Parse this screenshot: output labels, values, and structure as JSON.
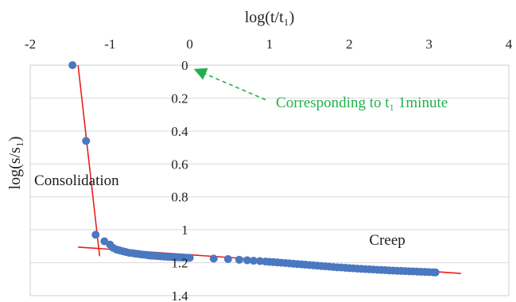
{
  "chart_data": {
    "type": "scatter",
    "title": "",
    "xlabel": "log(t/t₁)",
    "ylabel": "log(s/s₁)",
    "xlim": [
      -2,
      4
    ],
    "ylim": [
      0,
      1.4
    ],
    "y_inverted": true,
    "x_axis_position": "top",
    "xticks": [
      "-2",
      "-1",
      "0",
      "1",
      "2",
      "3",
      "4"
    ],
    "yticks": [
      "0",
      "0.2",
      "0.4",
      "0.6",
      "0.8",
      "1",
      "1.2",
      "1.4"
    ],
    "grid": "horizontal",
    "marker_color": "#4a78c1",
    "line_color": "#e8201c",
    "annotation_color": "#22b04c",
    "series": [
      {
        "points": [
          [
            -1.47,
            0.0
          ],
          [
            -1.3,
            0.46
          ],
          [
            -1.18,
            1.03
          ],
          [
            -1.07,
            1.07
          ],
          [
            -1.0,
            1.09
          ],
          [
            -0.96,
            1.11
          ],
          [
            -0.92,
            1.12
          ],
          [
            -0.88,
            1.125
          ],
          [
            -0.84,
            1.13
          ],
          [
            -0.8,
            1.135
          ],
          [
            -0.76,
            1.14
          ],
          [
            -0.72,
            1.142
          ],
          [
            -0.68,
            1.145
          ],
          [
            -0.64,
            1.147
          ],
          [
            -0.6,
            1.15
          ],
          [
            -0.56,
            1.152
          ],
          [
            -0.52,
            1.155
          ],
          [
            -0.48,
            1.157
          ],
          [
            -0.44,
            1.158
          ],
          [
            -0.4,
            1.16
          ],
          [
            -0.36,
            1.161
          ],
          [
            -0.32,
            1.163
          ],
          [
            -0.28,
            1.164
          ],
          [
            -0.24,
            1.165
          ],
          [
            -0.2,
            1.166
          ],
          [
            -0.16,
            1.167
          ],
          [
            -0.12,
            1.168
          ],
          [
            -0.08,
            1.169
          ],
          [
            -0.04,
            1.17
          ],
          [
            0.0,
            1.17
          ],
          [
            0.3,
            1.175
          ],
          [
            0.48,
            1.178
          ],
          [
            0.62,
            1.182
          ],
          [
            0.72,
            1.185
          ],
          [
            0.8,
            1.188
          ],
          [
            0.88,
            1.19
          ],
          [
            0.95,
            1.193
          ],
          [
            1.0,
            1.195
          ],
          [
            1.05,
            1.196
          ],
          [
            1.1,
            1.198
          ],
          [
            1.15,
            1.2
          ],
          [
            1.2,
            1.202
          ],
          [
            1.25,
            1.204
          ],
          [
            1.3,
            1.206
          ],
          [
            1.35,
            1.208
          ],
          [
            1.4,
            1.21
          ],
          [
            1.45,
            1.212
          ],
          [
            1.5,
            1.214
          ],
          [
            1.55,
            1.216
          ],
          [
            1.6,
            1.218
          ],
          [
            1.65,
            1.22
          ],
          [
            1.7,
            1.222
          ],
          [
            1.75,
            1.224
          ],
          [
            1.8,
            1.226
          ],
          [
            1.85,
            1.228
          ],
          [
            1.9,
            1.229
          ],
          [
            1.95,
            1.231
          ],
          [
            2.0,
            1.233
          ],
          [
            2.05,
            1.234
          ],
          [
            2.1,
            1.236
          ],
          [
            2.15,
            1.237
          ],
          [
            2.2,
            1.239
          ],
          [
            2.25,
            1.24
          ],
          [
            2.3,
            1.241
          ],
          [
            2.35,
            1.243
          ],
          [
            2.4,
            1.244
          ],
          [
            2.45,
            1.245
          ],
          [
            2.5,
            1.247
          ],
          [
            2.55,
            1.248
          ],
          [
            2.6,
            1.249
          ],
          [
            2.65,
            1.25
          ],
          [
            2.7,
            1.251
          ],
          [
            2.75,
            1.252
          ],
          [
            2.8,
            1.253
          ],
          [
            2.85,
            1.254
          ],
          [
            2.9,
            1.255
          ],
          [
            2.95,
            1.256
          ],
          [
            3.0,
            1.257
          ],
          [
            3.05,
            1.258
          ],
          [
            3.08,
            1.259
          ]
        ]
      }
    ],
    "trendlines": [
      {
        "name": "consolidation",
        "from": [
          -1.4,
          0.0
        ],
        "to": [
          -1.13,
          1.16
        ]
      },
      {
        "name": "creep",
        "from": [
          -1.4,
          1.105
        ],
        "to": [
          3.4,
          1.265
        ]
      }
    ],
    "annotations": [
      {
        "id": "consolidation",
        "text": "Consolidation",
        "x": -1.95,
        "y": 0.73
      },
      {
        "id": "creep",
        "text": "Creep",
        "x": 2.25,
        "y": 1.09
      }
    ],
    "arrow_annotation": {
      "text": "Corresponding to t₁ 1minute",
      "text_x": 1.08,
      "text_y": 0.255,
      "from": [
        0.95,
        0.21
      ],
      "to": [
        0.02,
        0.01
      ]
    }
  }
}
